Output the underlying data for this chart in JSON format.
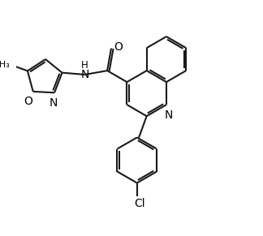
{
  "background_color": "#ffffff",
  "line_color": "#1a1a1a",
  "line_width": 1.5,
  "dbo": 0.055,
  "text_color": "#000000",
  "fig_width": 3.24,
  "fig_height": 2.91,
  "dpi": 100,
  "xlim": [
    0.0,
    6.5
  ],
  "ylim": [
    -4.2,
    2.0
  ]
}
